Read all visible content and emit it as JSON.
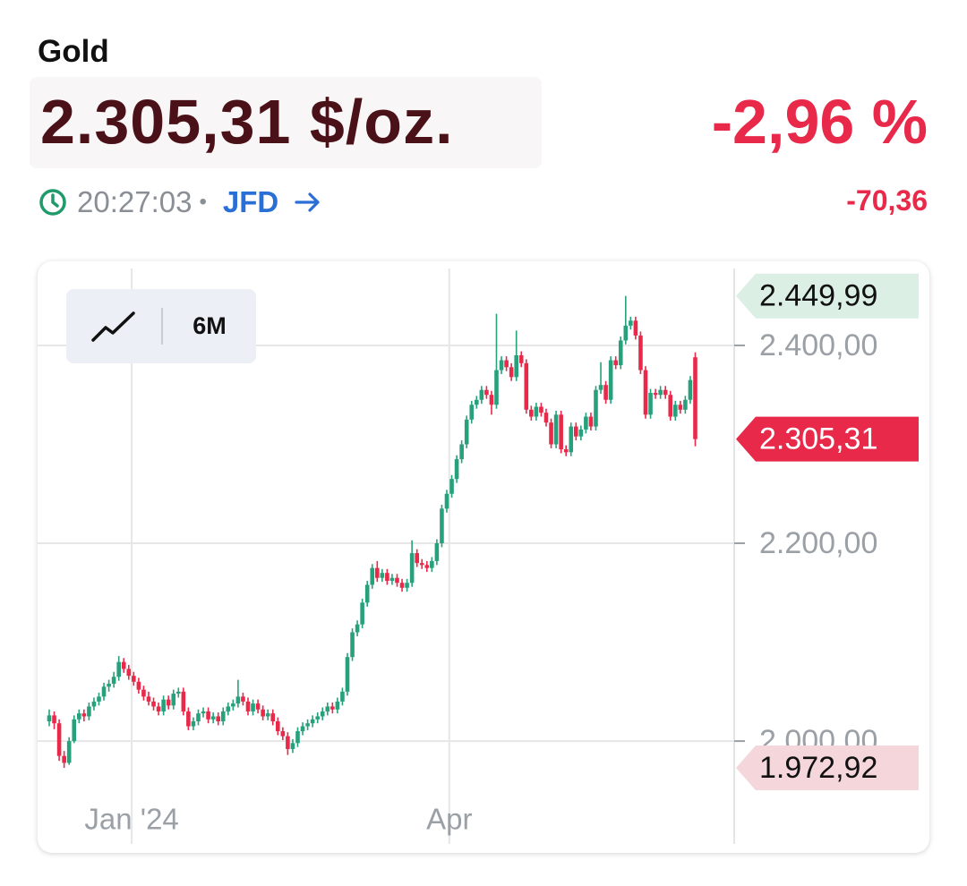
{
  "header": {
    "title": "Gold",
    "price": "2.305,31 $/oz.",
    "change_percent": "-2,96 %",
    "time": "20:27:03",
    "separator": "•",
    "source": "JFD",
    "change": "-70,36",
    "range": "6M"
  },
  "chart_data": {
    "type": "candlestick",
    "up_color": "#26a17b",
    "down_color": "#e8294a",
    "grid": true,
    "ylim": [
      1887,
      2485
    ],
    "yticks": [
      {
        "value": 2000,
        "label": "2.000,00"
      },
      {
        "value": 2200,
        "label": "2.200,00"
      },
      {
        "value": 2400,
        "label": "2.400,00"
      }
    ],
    "xlim": [
      -2.34,
      137.84
    ],
    "xticks": [
      {
        "value": 16.6,
        "label": "Jan '24"
      },
      {
        "value": 80.5,
        "label": "Apr"
      }
    ],
    "markers": [
      {
        "value": 2449.99,
        "label": "2.449,99",
        "fill": "#dcefe4",
        "text_color": "#111111"
      },
      {
        "value": 2305.31,
        "label": "2.305,31",
        "fill": "#e8294a",
        "text_color": "#ffffff"
      },
      {
        "value": 1972.92,
        "label": "1.972,92",
        "fill": "#f4d6db",
        "text_color": "#111111"
      }
    ],
    "ohlc": [
      [
        2020,
        2032,
        2015,
        2026
      ],
      [
        2026,
        2030,
        2012,
        2018
      ],
      [
        2018,
        2022,
        1980,
        1985
      ],
      [
        1985,
        1990,
        1972.92,
        1978
      ],
      [
        1978,
        2004,
        1976,
        2000
      ],
      [
        2000,
        2026,
        1998,
        2022
      ],
      [
        2022,
        2032,
        2018,
        2028
      ],
      [
        2028,
        2032,
        2020,
        2025
      ],
      [
        2025,
        2039,
        2021,
        2035
      ],
      [
        2035,
        2044,
        2031,
        2040
      ],
      [
        2040,
        2049,
        2036,
        2045
      ],
      [
        2045,
        2059,
        2041,
        2055
      ],
      [
        2055,
        2062,
        2050,
        2058
      ],
      [
        2058,
        2070,
        2054,
        2065
      ],
      [
        2065,
        2086,
        2061,
        2080
      ],
      [
        2080,
        2084,
        2069,
        2073
      ],
      [
        2073,
        2077,
        2062,
        2066
      ],
      [
        2066,
        2070,
        2056,
        2060
      ],
      [
        2060,
        2064,
        2048,
        2052
      ],
      [
        2052,
        2056,
        2041,
        2045
      ],
      [
        2045,
        2050,
        2036,
        2040
      ],
      [
        2040,
        2044,
        2031,
        2035
      ],
      [
        2035,
        2039,
        2026,
        2030
      ],
      [
        2030,
        2046,
        2026,
        2042
      ],
      [
        2042,
        2046,
        2032,
        2036
      ],
      [
        2036,
        2052,
        2032,
        2048
      ],
      [
        2048,
        2054,
        2044,
        2050
      ],
      [
        2050,
        2054,
        2026,
        2030
      ],
      [
        2030,
        2034,
        2011,
        2015
      ],
      [
        2015,
        2024,
        2011,
        2020
      ],
      [
        2020,
        2032,
        2016,
        2028
      ],
      [
        2028,
        2034,
        2024,
        2030
      ],
      [
        2030,
        2034,
        2018,
        2022
      ],
      [
        2022,
        2029,
        2018,
        2025
      ],
      [
        2025,
        2029,
        2016,
        2020
      ],
      [
        2020,
        2034,
        2016,
        2030
      ],
      [
        2030,
        2039,
        2026,
        2035
      ],
      [
        2035,
        2042,
        2031,
        2038
      ],
      [
        2038,
        2062,
        2034,
        2045
      ],
      [
        2045,
        2049,
        2036,
        2040
      ],
      [
        2040,
        2044,
        2026,
        2030
      ],
      [
        2030,
        2042,
        2026,
        2038
      ],
      [
        2038,
        2042,
        2028,
        2032
      ],
      [
        2032,
        2036,
        2021,
        2025
      ],
      [
        2025,
        2032,
        2021,
        2028
      ],
      [
        2028,
        2032,
        2016,
        2020
      ],
      [
        2020,
        2024,
        2006,
        2010
      ],
      [
        2010,
        2014,
        2001,
        2005
      ],
      [
        2005,
        2009,
        1986,
        1992
      ],
      [
        1992,
        2002,
        1988,
        1998
      ],
      [
        1998,
        2014,
        1994,
        2010
      ],
      [
        2010,
        2019,
        2006,
        2015
      ],
      [
        2015,
        2022,
        2011,
        2018
      ],
      [
        2018,
        2026,
        2014,
        2022
      ],
      [
        2022,
        2029,
        2018,
        2025
      ],
      [
        2025,
        2034,
        2021,
        2030
      ],
      [
        2030,
        2039,
        2026,
        2035
      ],
      [
        2035,
        2039,
        2028,
        2032
      ],
      [
        2032,
        2044,
        2028,
        2040
      ],
      [
        2040,
        2054,
        2036,
        2050
      ],
      [
        2050,
        2089,
        2046,
        2085
      ],
      [
        2085,
        2114,
        2081,
        2110
      ],
      [
        2110,
        2122,
        2106,
        2118
      ],
      [
        2118,
        2144,
        2114,
        2140
      ],
      [
        2140,
        2162,
        2136,
        2158
      ],
      [
        2158,
        2179,
        2154,
        2175
      ],
      [
        2175,
        2182,
        2161,
        2165
      ],
      [
        2165,
        2174,
        2161,
        2170
      ],
      [
        2170,
        2174,
        2158,
        2162
      ],
      [
        2162,
        2169,
        2158,
        2165
      ],
      [
        2165,
        2169,
        2156,
        2160
      ],
      [
        2160,
        2164,
        2151,
        2155
      ],
      [
        2155,
        2164,
        2151,
        2160
      ],
      [
        2160,
        2203,
        2156,
        2190
      ],
      [
        2190,
        2194,
        2176,
        2180
      ],
      [
        2180,
        2184,
        2174,
        2178
      ],
      [
        2178,
        2182,
        2171,
        2175
      ],
      [
        2175,
        2186,
        2171,
        2182
      ],
      [
        2182,
        2204,
        2178,
        2200
      ],
      [
        2200,
        2239,
        2196,
        2235
      ],
      [
        2235,
        2254,
        2231,
        2250
      ],
      [
        2250,
        2269,
        2246,
        2265
      ],
      [
        2265,
        2289,
        2261,
        2285
      ],
      [
        2285,
        2304,
        2281,
        2300
      ],
      [
        2300,
        2329,
        2296,
        2325
      ],
      [
        2325,
        2344,
        2321,
        2340
      ],
      [
        2340,
        2349,
        2336,
        2345
      ],
      [
        2345,
        2359,
        2341,
        2355
      ],
      [
        2355,
        2359,
        2346,
        2350
      ],
      [
        2350,
        2354,
        2330,
        2340
      ],
      [
        2340,
        2432,
        2336,
        2375
      ],
      [
        2375,
        2389,
        2371,
        2385
      ],
      [
        2385,
        2389,
        2374,
        2378
      ],
      [
        2378,
        2382,
        2364,
        2368
      ],
      [
        2368,
        2415,
        2364,
        2390
      ],
      [
        2390,
        2394,
        2378,
        2382
      ],
      [
        2382,
        2386,
        2331,
        2335
      ],
      [
        2335,
        2339,
        2324,
        2328
      ],
      [
        2328,
        2342,
        2324,
        2338
      ],
      [
        2338,
        2342,
        2328,
        2332
      ],
      [
        2332,
        2336,
        2318,
        2322
      ],
      [
        2322,
        2326,
        2296,
        2300
      ],
      [
        2300,
        2334,
        2296,
        2330
      ],
      [
        2330,
        2334,
        2291,
        2295
      ],
      [
        2295,
        2299,
        2288,
        2292
      ],
      [
        2292,
        2322,
        2288,
        2318
      ],
      [
        2318,
        2322,
        2304,
        2308
      ],
      [
        2308,
        2319,
        2304,
        2315
      ],
      [
        2315,
        2332,
        2311,
        2328
      ],
      [
        2328,
        2332,
        2314,
        2318
      ],
      [
        2318,
        2359,
        2314,
        2355
      ],
      [
        2355,
        2383,
        2351,
        2360
      ],
      [
        2360,
        2364,
        2341,
        2345
      ],
      [
        2345,
        2389,
        2341,
        2385
      ],
      [
        2385,
        2389,
        2376,
        2380
      ],
      [
        2380,
        2409,
        2376,
        2405
      ],
      [
        2405,
        2449.99,
        2401,
        2420
      ],
      [
        2420,
        2429,
        2416,
        2425
      ],
      [
        2425,
        2429,
        2406,
        2410
      ],
      [
        2410,
        2414,
        2371,
        2375
      ],
      [
        2375,
        2379,
        2326,
        2330
      ],
      [
        2330,
        2356,
        2326,
        2352
      ],
      [
        2352,
        2356,
        2346,
        2350
      ],
      [
        2350,
        2359,
        2346,
        2355
      ],
      [
        2355,
        2359,
        2346,
        2350
      ],
      [
        2350,
        2354,
        2324,
        2328
      ],
      [
        2328,
        2344,
        2324,
        2340
      ],
      [
        2340,
        2344,
        2331,
        2335
      ],
      [
        2335,
        2349,
        2331,
        2345
      ],
      [
        2345,
        2369,
        2341,
        2365
      ],
      [
        2388,
        2393,
        2298,
        2305.31
      ]
    ]
  }
}
